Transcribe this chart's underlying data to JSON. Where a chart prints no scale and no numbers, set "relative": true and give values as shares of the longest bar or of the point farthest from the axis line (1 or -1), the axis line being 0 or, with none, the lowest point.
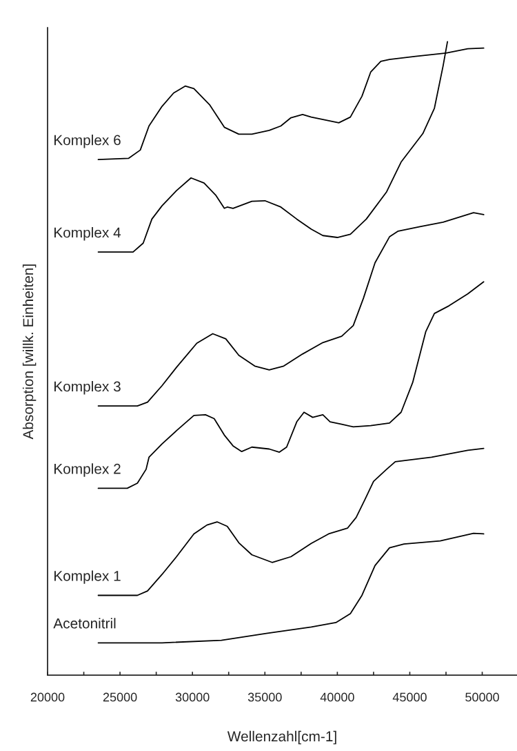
{
  "chart_data": {
    "type": "line",
    "relative": true,
    "xlabel": "Wellenzahl[cm-1]",
    "ylabel": "Absorption [willk. Einheiten]",
    "xlim": [
      20000,
      52400
    ],
    "xticks": [
      20000,
      {
        "value": 22500,
        "label": null
      },
      25000,
      {
        "value": 27500,
        "label": null
      },
      30000,
      {
        "value": 32500,
        "label": null
      },
      35000,
      {
        "value": 37500,
        "label": null
      },
      40000,
      {
        "value": 42500,
        "label": null
      },
      45000,
      {
        "value": 47500,
        "label": null
      },
      50000
    ],
    "grid": false,
    "tick_labels": "x",
    "series": [
      {
        "name": "Komplex 6",
        "color": "#000000",
        "x": [
          23500,
          25600,
          26400,
          27000,
          27900,
          28700,
          29500,
          30100,
          31200,
          32200,
          33200,
          34100,
          35300,
          36100,
          36800,
          37600,
          38200,
          40100,
          40900,
          41700,
          42300,
          43000,
          43600,
          45400,
          47500,
          49000,
          50100
        ],
        "values": [
          0.814,
          0.816,
          0.829,
          0.867,
          0.898,
          0.919,
          0.93,
          0.926,
          0.9,
          0.865,
          0.854,
          0.854,
          0.86,
          0.867,
          0.88,
          0.885,
          0.881,
          0.872,
          0.881,
          0.914,
          0.952,
          0.969,
          0.972,
          0.977,
          0.982,
          0.989,
          0.99
        ]
      },
      {
        "name": "Komplex 4",
        "color": "#000000",
        "x": [
          23500,
          25900,
          26600,
          27200,
          27900,
          28900,
          29900,
          30800,
          31600,
          32200,
          32400,
          32800,
          34100,
          35000,
          36100,
          37200,
          38200,
          39000,
          40000,
          40900,
          42000,
          43400,
          44400,
          45900,
          46700,
          47300,
          47600
        ],
        "values": [
          0.668,
          0.668,
          0.682,
          0.72,
          0.741,
          0.765,
          0.785,
          0.777,
          0.758,
          0.737,
          0.739,
          0.737,
          0.748,
          0.749,
          0.739,
          0.72,
          0.704,
          0.694,
          0.691,
          0.696,
          0.72,
          0.763,
          0.81,
          0.855,
          0.895,
          0.962,
          1.0
        ]
      },
      {
        "name": "Komplex 3",
        "color": "#000000",
        "x": [
          23500,
          26200,
          26900,
          27900,
          28900,
          30300,
          31400,
          32300,
          33200,
          34300,
          35300,
          36300,
          37600,
          39000,
          40300,
          41100,
          41800,
          42600,
          43600,
          44200,
          45700,
          47300,
          49400,
          50100
        ],
        "values": [
          0.425,
          0.425,
          0.431,
          0.457,
          0.486,
          0.524,
          0.539,
          0.531,
          0.505,
          0.488,
          0.482,
          0.488,
          0.507,
          0.525,
          0.535,
          0.552,
          0.595,
          0.651,
          0.692,
          0.701,
          0.708,
          0.715,
          0.73,
          0.727
        ]
      },
      {
        "name": "Komplex 2",
        "color": "#000000",
        "x": [
          23500,
          25500,
          26200,
          26800,
          27000,
          27900,
          28900,
          30100,
          30900,
          31500,
          32200,
          32800,
          33400,
          34100,
          35300,
          36000,
          36500,
          37200,
          37700,
          38300,
          39000,
          39500,
          40300,
          41100,
          42300,
          43600,
          44400,
          45200,
          46100,
          46700,
          47700,
          49000,
          50100
        ],
        "values": [
          0.295,
          0.295,
          0.303,
          0.325,
          0.344,
          0.365,
          0.386,
          0.41,
          0.411,
          0.405,
          0.379,
          0.362,
          0.353,
          0.36,
          0.357,
          0.352,
          0.36,
          0.4,
          0.415,
          0.407,
          0.411,
          0.4,
          0.396,
          0.392,
          0.394,
          0.398,
          0.415,
          0.462,
          0.542,
          0.571,
          0.583,
          0.602,
          0.621
        ]
      },
      {
        "name": "Komplex 1",
        "color": "#000000",
        "x": [
          23500,
          26200,
          26900,
          27900,
          28900,
          30100,
          31000,
          31700,
          32400,
          33200,
          34100,
          35500,
          36800,
          38200,
          39400,
          40700,
          41300,
          41900,
          42500,
          43400,
          44000,
          46500,
          49000,
          50100
        ],
        "values": [
          0.126,
          0.126,
          0.133,
          0.159,
          0.187,
          0.223,
          0.237,
          0.242,
          0.235,
          0.209,
          0.19,
          0.178,
          0.187,
          0.208,
          0.223,
          0.232,
          0.249,
          0.277,
          0.306,
          0.325,
          0.337,
          0.344,
          0.355,
          0.358
        ]
      },
      {
        "name": "Acetonitril",
        "color": "#000000",
        "x": [
          23500,
          27900,
          32000,
          35100,
          38200,
          39900,
          40900,
          41700,
          42600,
          43600,
          44600,
          47100,
          49400,
          50100
        ],
        "values": [
          0.051,
          0.051,
          0.055,
          0.066,
          0.076,
          0.083,
          0.097,
          0.126,
          0.173,
          0.201,
          0.207,
          0.212,
          0.224,
          0.223
        ]
      }
    ]
  }
}
